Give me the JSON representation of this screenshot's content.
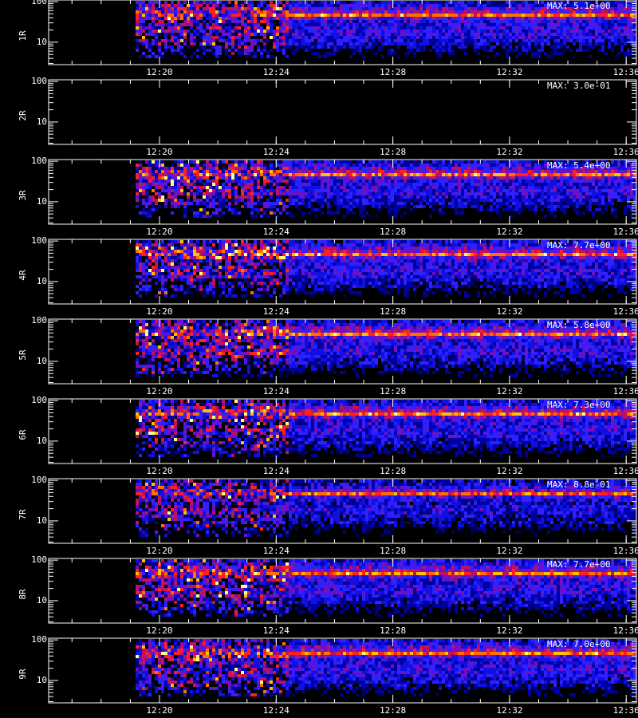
{
  "chart_data": {
    "type": "spectrogram",
    "log_y": true,
    "xlim": [
      736.2,
      756.35
    ],
    "xticks": [
      {
        "value": 740,
        "label": "12:20"
      },
      {
        "value": 744,
        "label": "12:24"
      },
      {
        "value": 748,
        "label": "12:28"
      },
      {
        "value": 752,
        "label": "12:32"
      },
      {
        "value": 756,
        "label": "12:36"
      }
    ],
    "ylim": [
      2.8,
      110
    ],
    "yticks": [
      10,
      100
    ],
    "panels": [
      {
        "label": "1R",
        "max": "MAX: 5.1e+00"
      },
      {
        "label": "2R",
        "max": "MAX: 3.0e-01"
      },
      {
        "label": "3R",
        "max": "MAX: 5.4e+00"
      },
      {
        "label": "4R",
        "max": "MAX: 7.7e+00"
      },
      {
        "label": "5R",
        "max": "MAX: 5.8e+00"
      },
      {
        "label": "6R",
        "max": "MAX: 7.3e+00"
      },
      {
        "label": "7R",
        "max": "MAX: 8.8e-01"
      },
      {
        "label": "8R",
        "max": "MAX: 7.7e+00"
      },
      {
        "label": "9R",
        "max": "MAX: 7.0e+00"
      }
    ]
  }
}
